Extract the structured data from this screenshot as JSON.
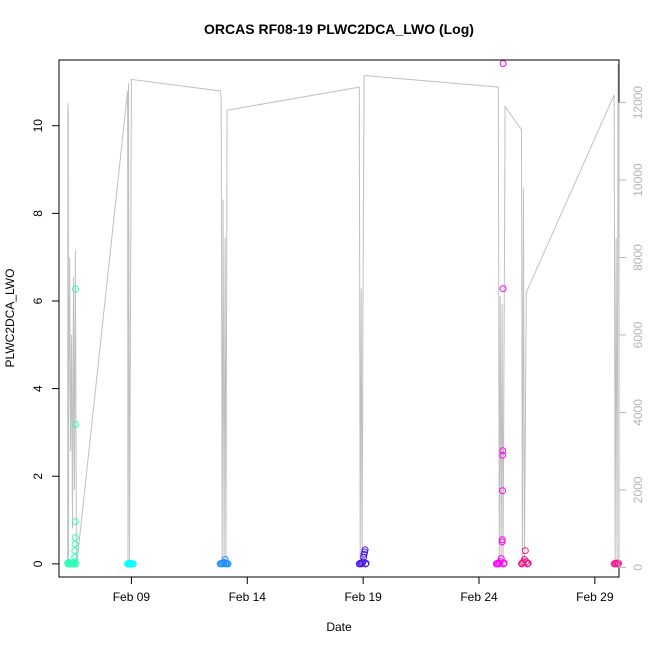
{
  "chart_data": {
    "type": "scatter",
    "title": "ORCAS RF08-19 PLWC2DCA_LWO (Log)",
    "xlabel": "Date",
    "ylabel": "PLWC2DCA_LWO",
    "x_ticks": [
      "Feb 09",
      "Feb 14",
      "Feb 19",
      "Feb 24",
      "Feb 29"
    ],
    "y_ticks_left": [
      "0",
      "2",
      "4",
      "6",
      "8",
      "10"
    ],
    "y_ticks_right": [
      "0",
      "2000",
      "4000",
      "6000",
      "8000",
      "10000",
      "12000"
    ],
    "xlim": [
      "2016-02-05T21:00",
      "2016-03-01T01:00"
    ],
    "ylim_left": [
      -0.3,
      11.5
    ],
    "ylim_right": [
      -250,
      13100
    ],
    "grid": false,
    "series": [
      {
        "color": "#2EFFB4",
        "points": [
          [
            "2016-02-06T06:00",
            0.02
          ],
          [
            "2016-02-06T06:30",
            0.0
          ],
          [
            "2016-02-06T07:00",
            0.01
          ],
          [
            "2016-02-06T07:30",
            0.0
          ],
          [
            "2016-02-06T08:00",
            0.03
          ],
          [
            "2016-02-06T08:30",
            0.0
          ],
          [
            "2016-02-06T09:00",
            0.01
          ],
          [
            "2016-02-06T10:00",
            0.0
          ],
          [
            "2016-02-06T10:30",
            0.02
          ],
          [
            "2016-02-06T11:00",
            0.0
          ],
          [
            "2016-02-06T11:30",
            0.01
          ],
          [
            "2016-02-06T12:00",
            0.0
          ],
          [
            "2016-02-06T12:30",
            0.02
          ],
          [
            "2016-02-06T13:00",
            0.05
          ],
          [
            "2016-02-06T13:20",
            0.15
          ],
          [
            "2016-02-06T13:30",
            0.3
          ],
          [
            "2016-02-06T13:40",
            0.45
          ],
          [
            "2016-02-06T13:50",
            0.6
          ],
          [
            "2016-02-06T14:00",
            0.96
          ],
          [
            "2016-02-06T14:05",
            3.18
          ],
          [
            "2016-02-06T14:10",
            6.27
          ],
          [
            "2016-02-06T14:20",
            0.0
          ],
          [
            "2016-02-06T14:30",
            0.01
          ]
        ]
      },
      {
        "color": "#00FFFF",
        "points": [
          [
            "2016-02-08T20:00",
            0.0
          ],
          [
            "2016-02-08T21:00",
            0.01
          ],
          [
            "2016-02-08T22:00",
            0.0
          ],
          [
            "2016-02-08T23:00",
            0.0
          ],
          [
            "2016-02-09T00:00",
            0.01
          ],
          [
            "2016-02-09T01:00",
            0.0
          ],
          [
            "2016-02-09T02:00",
            0.0
          ]
        ]
      },
      {
        "color": "#1E90FF",
        "points": [
          [
            "2016-02-12T20:00",
            0.0
          ],
          [
            "2016-02-12T21:00",
            0.01
          ],
          [
            "2016-02-12T22:00",
            0.0
          ],
          [
            "2016-02-12T23:00",
            0.02
          ],
          [
            "2016-02-13T00:00",
            0.03
          ],
          [
            "2016-02-13T01:00",
            0.1
          ],
          [
            "2016-02-13T01:30",
            0.02
          ],
          [
            "2016-02-13T02:00",
            0.0
          ],
          [
            "2016-02-13T03:00",
            0.01
          ],
          [
            "2016-02-13T04:00",
            0.0
          ]
        ]
      },
      {
        "color": "#4B16E6",
        "points": [
          [
            "2016-02-18T20:00",
            0.0
          ],
          [
            "2016-02-18T21:00",
            0.01
          ],
          [
            "2016-02-18T22:00",
            0.0
          ],
          [
            "2016-02-18T23:00",
            0.02
          ],
          [
            "2016-02-19T00:00",
            0.05
          ],
          [
            "2016-02-19T00:30",
            0.15
          ],
          [
            "2016-02-19T01:00",
            0.22
          ],
          [
            "2016-02-19T01:30",
            0.27
          ],
          [
            "2016-02-19T02:00",
            0.32
          ],
          [
            "2016-02-19T02:30",
            0.0
          ],
          [
            "2016-02-19T03:00",
            0.01
          ]
        ]
      },
      {
        "color": "#FF00FF",
        "points": [
          [
            "2016-02-24T18:00",
            0.0
          ],
          [
            "2016-02-24T19:00",
            0.01
          ],
          [
            "2016-02-24T20:00",
            0.0
          ],
          [
            "2016-02-24T21:00",
            0.02
          ],
          [
            "2016-02-24T22:00",
            0.05
          ],
          [
            "2016-02-24T23:00",
            0.12
          ],
          [
            "2016-02-25T00:00",
            0.5
          ],
          [
            "2016-02-25T00:10",
            0.55
          ],
          [
            "2016-02-25T00:20",
            1.67
          ],
          [
            "2016-02-25T00:30",
            2.48
          ],
          [
            "2016-02-25T00:40",
            2.58
          ],
          [
            "2016-02-25T00:50",
            6.28
          ],
          [
            "2016-02-25T01:00",
            11.42
          ],
          [
            "2016-02-25T01:30",
            0.0
          ],
          [
            "2016-02-25T02:00",
            0.02
          ]
        ]
      },
      {
        "color": "#F0148C",
        "points": [
          [
            "2016-02-25T20:00",
            0.0
          ],
          [
            "2016-02-25T21:00",
            0.02
          ],
          [
            "2016-02-25T22:00",
            0.05
          ],
          [
            "2016-02-25T23:00",
            0.1
          ],
          [
            "2016-02-26T00:00",
            0.3
          ],
          [
            "2016-02-26T01:00",
            0.05
          ],
          [
            "2016-02-26T02:00",
            0.0
          ],
          [
            "2016-02-26T03:00",
            0.01
          ]
        ]
      },
      {
        "color": "#FF1493",
        "points": [
          [
            "2016-02-29T20:00",
            0.0
          ],
          [
            "2016-02-29T21:00",
            0.01
          ],
          [
            "2016-02-29T22:00",
            0.0
          ],
          [
            "2016-02-29T23:00",
            0.02
          ],
          [
            "2016-03-01T00:00",
            0.0
          ],
          [
            "2016-03-01T00:30",
            0.01
          ]
        ]
      }
    ],
    "altitude_line": {
      "color": "#c0c0c0",
      "points": [
        [
          "2016-02-06T06:00",
          0
        ],
        [
          "2016-02-06T06:10",
          12000
        ],
        [
          "2016-02-06T06:20",
          11600
        ],
        [
          "2016-02-06T06:30",
          9000
        ],
        [
          "2016-02-06T06:40",
          11800
        ],
        [
          "2016-02-06T06:50",
          200
        ],
        [
          "2016-02-06T07:00",
          4000
        ],
        [
          "2016-02-06T08:00",
          8000
        ],
        [
          "2016-02-06T09:00",
          3000
        ],
        [
          "2016-02-06T10:00",
          6000
        ],
        [
          "2016-02-06T11:00",
          1000
        ],
        [
          "2016-02-06T12:00",
          7500
        ],
        [
          "2016-02-06T13:00",
          2000
        ],
        [
          "2016-02-06T14:00",
          8200
        ],
        [
          "2016-02-06T15:00",
          0
        ],
        [
          "2016-02-08T20:00",
          12300
        ],
        [
          "2016-02-08T20:30",
          200
        ],
        [
          "2016-02-08T21:00",
          12500
        ],
        [
          "2016-02-08T22:00",
          0
        ],
        [
          "2016-02-09T00:00",
          12600
        ],
        [
          "2016-02-12T20:00",
          12300
        ],
        [
          "2016-02-12T21:00",
          12100
        ],
        [
          "2016-02-12T22:00",
          0
        ],
        [
          "2016-02-12T23:00",
          9500
        ],
        [
          "2016-02-13T00:00",
          0
        ],
        [
          "2016-02-13T01:00",
          8500
        ],
        [
          "2016-02-13T02:00",
          0
        ],
        [
          "2016-02-13T03:00",
          11800
        ],
        [
          "2016-02-18T20:00",
          12400
        ],
        [
          "2016-02-18T21:00",
          0
        ],
        [
          "2016-02-18T22:00",
          7200
        ],
        [
          "2016-02-18T23:00",
          200
        ],
        [
          "2016-02-19T00:00",
          7500
        ],
        [
          "2016-02-19T01:00",
          12700
        ],
        [
          "2016-02-24T20:00",
          12400
        ],
        [
          "2016-02-24T21:00",
          0
        ],
        [
          "2016-02-24T22:00",
          7000
        ],
        [
          "2016-02-24T23:00",
          200
        ],
        [
          "2016-02-25T00:00",
          6800
        ],
        [
          "2016-02-25T01:00",
          0
        ],
        [
          "2016-02-25T03:00",
          11900
        ],
        [
          "2016-02-25T20:00",
          11300
        ],
        [
          "2016-02-25T21:00",
          0
        ],
        [
          "2016-02-25T22:00",
          9800
        ],
        [
          "2016-02-25T23:00",
          200
        ],
        [
          "2016-02-26T01:00",
          7100
        ],
        [
          "2016-02-29T20:00",
          12200
        ],
        [
          "2016-02-29T21:00",
          0
        ],
        [
          "2016-02-29T22:00",
          8500
        ],
        [
          "2016-02-29T23:00",
          200
        ],
        [
          "2016-03-01T00:00",
          13000
        ]
      ]
    }
  }
}
